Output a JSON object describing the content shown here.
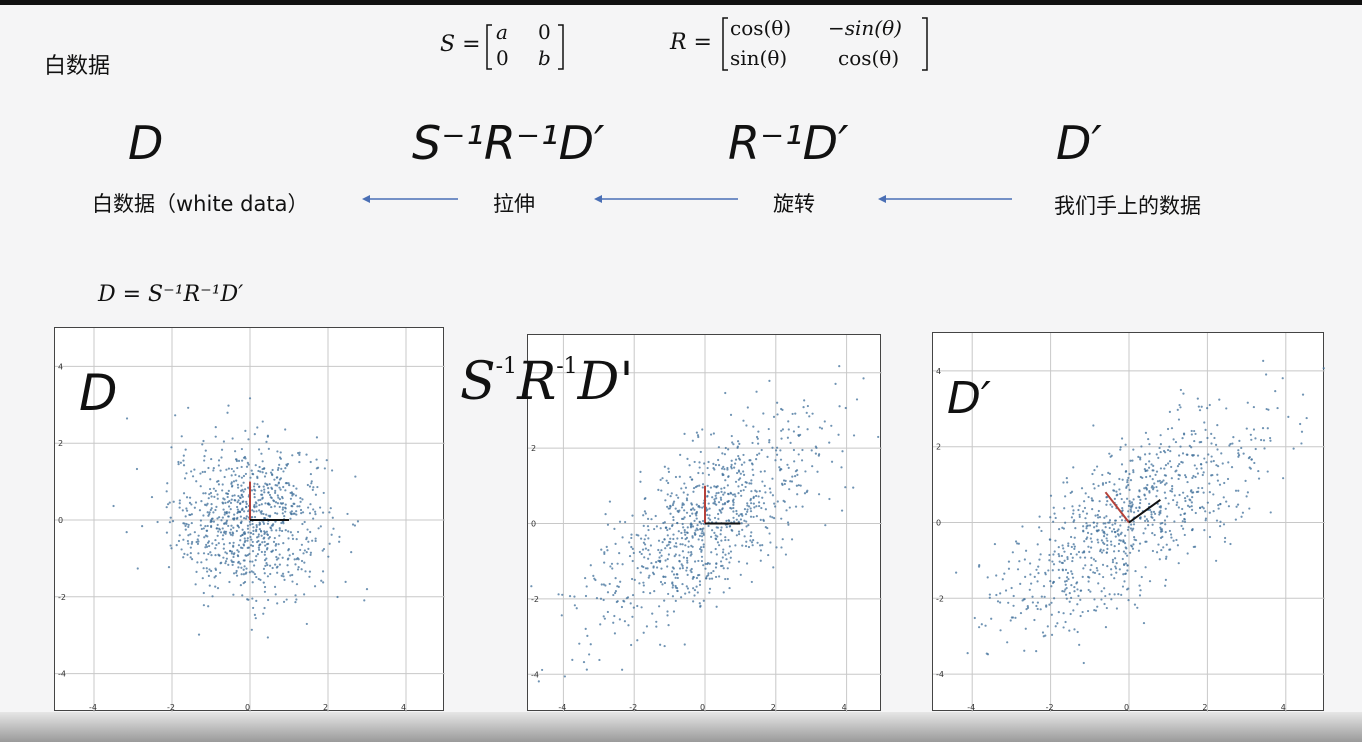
{
  "title": "白数据",
  "formulas": {
    "s_matrix": "S = [a 0; 0 b]",
    "s_lhs": "S =",
    "s_row1_a": "a",
    "s_row1_b": "0",
    "s_row2_a": "0",
    "s_row2_b": "b",
    "r_lhs": "R =",
    "r_row1_a": "cos(θ)",
    "r_row1_b": "−sin(θ)",
    "r_row2_a": "sin(θ)",
    "r_row2_b": "cos(θ)"
  },
  "pipeline": {
    "symbols": [
      "D",
      "S⁻¹R⁻¹D′",
      "R⁻¹D′",
      "D′"
    ],
    "steps": [
      "白数据（white data）",
      "拉伸",
      "旋转",
      "我们手上的数据"
    ]
  },
  "equation": "D = S⁻¹R⁻¹D′",
  "plots": [
    {
      "label": "D",
      "xticks": [
        "-4",
        "-2",
        "0",
        "2",
        "4"
      ],
      "yticks": [
        "4",
        "2",
        "0",
        "-2",
        "-4"
      ]
    },
    {
      "label": "S⁻¹R⁻¹D′",
      "xticks": [
        "-4",
        "-2",
        "0",
        "2",
        "4"
      ],
      "yticks": [
        "2",
        "0",
        "-2",
        "-4"
      ]
    },
    {
      "label": "D′",
      "xticks": [
        "-4",
        "-2",
        "0",
        "2",
        "4"
      ],
      "yticks": [
        "4",
        "2",
        "0",
        "-2",
        "-4"
      ]
    }
  ],
  "overlay_label": {
    "s": "S",
    "r": "R",
    "d": "D'",
    "sup": "-1"
  },
  "colors": {
    "points": "#3f6f9a",
    "axis_red": "#b5423a",
    "axis_dark": "#111111",
    "arrow": "#4a6fb5",
    "grid": "#c8c8c8"
  },
  "chart_data": [
    {
      "type": "scatter",
      "title": "D",
      "xlim": [
        -5,
        5
      ],
      "ylim": [
        -5,
        5
      ],
      "grid": true,
      "cov": [
        [
          1,
          0
        ],
        [
          0,
          1
        ]
      ],
      "n_points": 900
    },
    {
      "type": "scatter",
      "title": "",
      "xlim": [
        -5,
        5
      ],
      "ylim": [
        -5,
        5
      ],
      "grid": true,
      "cov": [
        [
          2.6,
          1.6
        ],
        [
          1.6,
          2.0
        ]
      ],
      "n_points": 900
    },
    {
      "type": "scatter",
      "title": "D′",
      "xlim": [
        -5,
        5
      ],
      "ylim": [
        -5,
        5
      ],
      "grid": true,
      "cov": [
        [
          2.6,
          1.6
        ],
        [
          1.6,
          2.0
        ]
      ],
      "n_points": 900
    }
  ]
}
